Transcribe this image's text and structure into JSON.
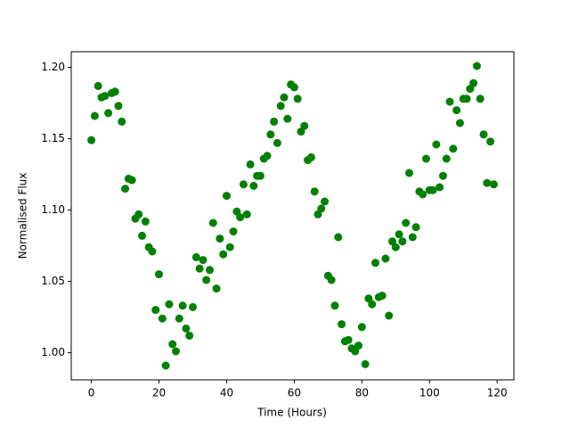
{
  "chart_data": {
    "type": "scatter",
    "x_label": "Time (Hours)",
    "y_label": "Normalised Flux",
    "color": "#008000",
    "x": [
      0,
      1,
      2,
      3,
      4,
      5,
      6,
      7,
      8,
      9,
      10,
      11,
      12,
      13,
      14,
      15,
      16,
      17,
      18,
      19,
      20,
      21,
      22,
      23,
      24,
      25,
      26,
      27,
      28,
      29,
      30,
      31,
      32,
      33,
      34,
      35,
      36,
      37,
      38,
      39,
      40,
      41,
      42,
      43,
      44,
      45,
      46,
      47,
      48,
      49,
      50,
      51,
      52,
      53,
      54,
      55,
      56,
      57,
      58,
      59,
      60,
      61,
      62,
      63,
      64,
      65,
      66,
      67,
      68,
      69,
      70,
      71,
      72,
      73,
      74,
      75,
      76,
      77,
      78,
      79,
      80,
      81,
      82,
      83,
      84,
      85,
      86,
      87,
      88,
      89,
      90,
      91,
      92,
      93,
      94,
      95,
      96,
      97,
      98,
      99,
      100,
      101,
      102,
      103,
      104,
      105,
      106,
      107,
      108,
      109,
      110,
      111,
      112,
      113,
      114,
      115,
      116,
      117,
      118,
      119
    ],
    "values": [
      1.149,
      1.166,
      1.187,
      1.179,
      1.18,
      1.168,
      1.182,
      1.183,
      1.173,
      1.162,
      1.115,
      1.122,
      1.121,
      1.094,
      1.097,
      1.082,
      1.092,
      1.074,
      1.071,
      1.03,
      1.055,
      1.024,
      0.991,
      1.034,
      1.006,
      1.001,
      1.024,
      1.033,
      1.017,
      1.012,
      1.032,
      1.067,
      1.059,
      1.065,
      1.051,
      1.058,
      1.091,
      1.045,
      1.08,
      1.069,
      1.11,
      1.074,
      1.085,
      1.099,
      1.095,
      1.118,
      1.097,
      1.132,
      1.117,
      1.124,
      1.124,
      1.136,
      1.138,
      1.153,
      1.162,
      1.147,
      1.173,
      1.179,
      1.164,
      1.188,
      1.186,
      1.178,
      1.155,
      1.159,
      1.135,
      1.137,
      1.113,
      1.097,
      1.101,
      1.106,
      1.054,
      1.051,
      1.033,
      1.081,
      1.02,
      1.008,
      1.009,
      1.003,
      1.001,
      1.005,
      1.018,
      0.992,
      1.038,
      1.034,
      1.063,
      1.039,
      1.04,
      1.066,
      1.026,
      1.078,
      1.074,
      1.083,
      1.078,
      1.091,
      1.126,
      1.081,
      1.088,
      1.113,
      1.111,
      1.136,
      1.114,
      1.114,
      1.146,
      1.116,
      1.124,
      1.136,
      1.176,
      1.143,
      1.17,
      1.161,
      1.178,
      1.178,
      1.185,
      1.189,
      1.201,
      1.178,
      1.153,
      1.119,
      1.148,
      1.118
    ],
    "xlim": [
      -5.95,
      124.95
    ],
    "ylim": [
      0.981,
      1.211
    ],
    "xticks": [
      0,
      20,
      40,
      60,
      80,
      100,
      120
    ],
    "yticks": [
      {
        "value": 1.0,
        "label": "1.00"
      },
      {
        "value": 1.05,
        "label": "1.05"
      },
      {
        "value": 1.1,
        "label": "1.10"
      },
      {
        "value": 1.15,
        "label": "1.15"
      },
      {
        "value": 1.2,
        "label": "1.20"
      }
    ]
  }
}
